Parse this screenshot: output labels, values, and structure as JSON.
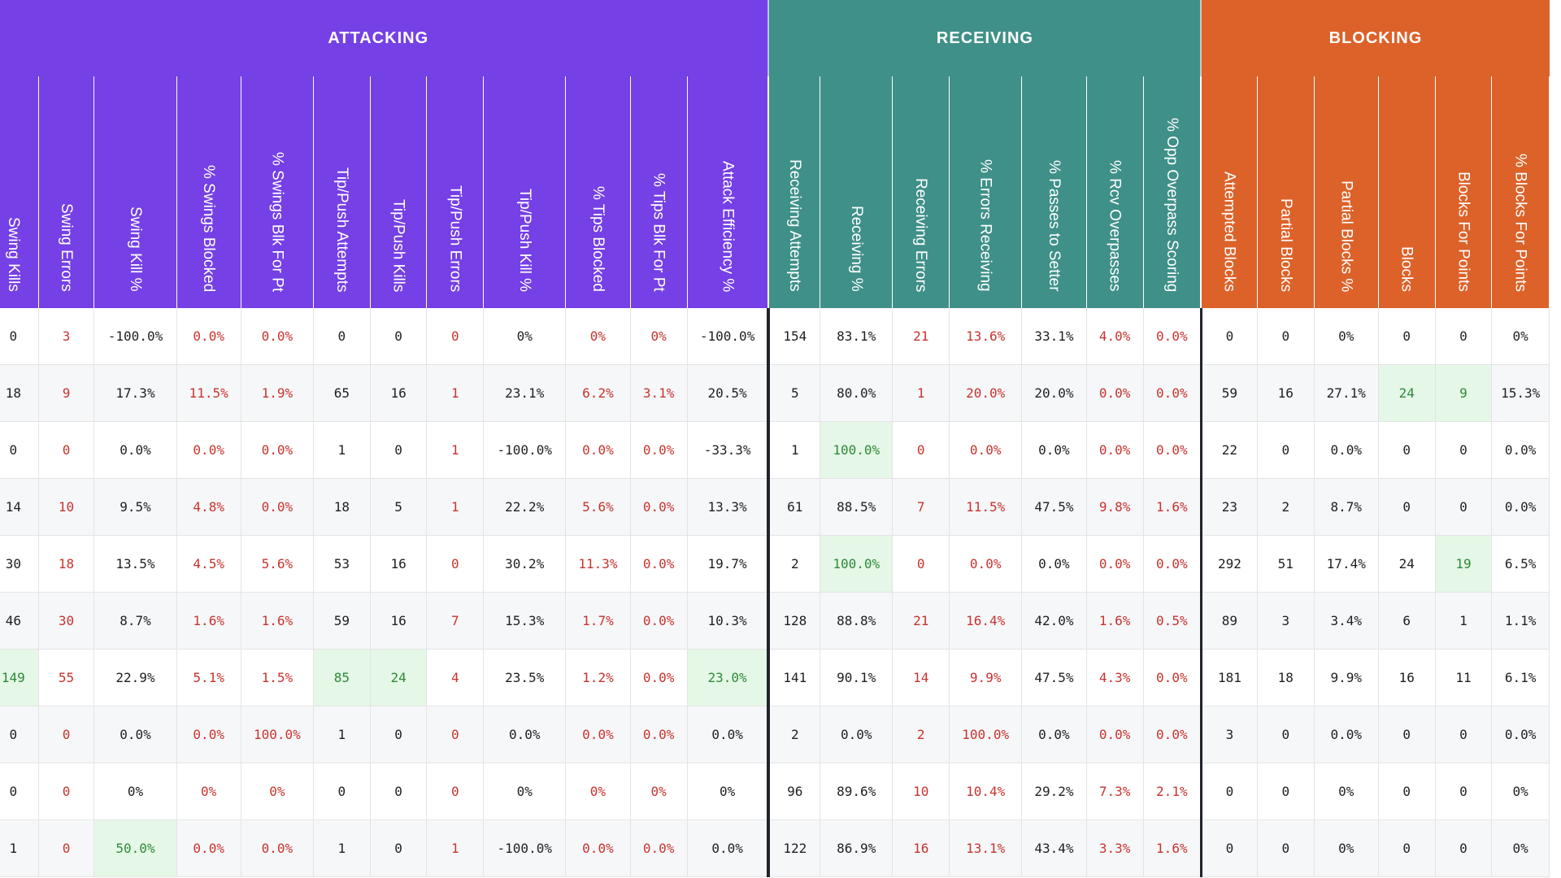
{
  "groups": [
    {
      "label": "ATTACKING",
      "color": "#7540e5",
      "span": 13
    },
    {
      "label": "RECEIVING",
      "color": "#3f9088",
      "span": 7
    },
    {
      "label": "BLOCKING",
      "color": "#dc6229",
      "span": 6
    }
  ],
  "columns": [
    "Swing Kills",
    "Swing Errors",
    "Swing Kill %",
    "% Swings Blocked",
    "% Swings Blk For Pt",
    "Tip/Push Attempts",
    "Tip/Push Kills",
    "Tip/Push Errors",
    "Tip/Push Kill %",
    "% Tips Blocked",
    "% Tips Blk For Pt",
    "Attack Efficiency %",
    "Receiving Attempts",
    "Receiving %",
    "Receiving Errors",
    "% Errors Receiving",
    "% Passes to Setter",
    "% Rcv Overpasses",
    "% Opp Overpass Scoring",
    "Attempted Blocks",
    "Partial Blocks",
    "Partial Blocks %",
    "Blocks",
    "Blocks For Points",
    "% Blocks For Points"
  ],
  "rows": [
    [
      "0",
      "3",
      "-100.0%",
      "0.0%",
      "0.0%",
      "0",
      "0",
      "0",
      "0%",
      "0%",
      "0%",
      "-100.0%",
      "154",
      "83.1%",
      "21",
      "13.6%",
      "33.1%",
      "4.0%",
      "0.0%",
      "0",
      "0",
      "0%",
      "0",
      "0",
      "0%"
    ],
    [
      "18",
      "9",
      "17.3%",
      "11.5%",
      "1.9%",
      "65",
      "16",
      "1",
      "23.1%",
      "6.2%",
      "3.1%",
      "20.5%",
      "5",
      "80.0%",
      "1",
      "20.0%",
      "20.0%",
      "0.0%",
      "0.0%",
      "59",
      "16",
      "27.1%",
      "24",
      "9",
      "15.3%"
    ],
    [
      "0",
      "0",
      "0.0%",
      "0.0%",
      "0.0%",
      "1",
      "0",
      "1",
      "-100.0%",
      "0.0%",
      "0.0%",
      "-33.3%",
      "1",
      "100.0%",
      "0",
      "0.0%",
      "0.0%",
      "0.0%",
      "0.0%",
      "22",
      "0",
      "0.0%",
      "0",
      "0",
      "0.0%"
    ],
    [
      "14",
      "10",
      "9.5%",
      "4.8%",
      "0.0%",
      "18",
      "5",
      "1",
      "22.2%",
      "5.6%",
      "0.0%",
      "13.3%",
      "61",
      "88.5%",
      "7",
      "11.5%",
      "47.5%",
      "9.8%",
      "1.6%",
      "23",
      "2",
      "8.7%",
      "0",
      "0",
      "0.0%"
    ],
    [
      "30",
      "18",
      "13.5%",
      "4.5%",
      "5.6%",
      "53",
      "16",
      "0",
      "30.2%",
      "11.3%",
      "0.0%",
      "19.7%",
      "2",
      "100.0%",
      "0",
      "0.0%",
      "0.0%",
      "0.0%",
      "0.0%",
      "292",
      "51",
      "17.4%",
      "24",
      "19",
      "6.5%"
    ],
    [
      "46",
      "30",
      "8.7%",
      "1.6%",
      "1.6%",
      "59",
      "16",
      "7",
      "15.3%",
      "1.7%",
      "0.0%",
      "10.3%",
      "128",
      "88.8%",
      "21",
      "16.4%",
      "42.0%",
      "1.6%",
      "0.5%",
      "89",
      "3",
      "3.4%",
      "6",
      "1",
      "1.1%"
    ],
    [
      "149",
      "55",
      "22.9%",
      "5.1%",
      "1.5%",
      "85",
      "24",
      "4",
      "23.5%",
      "1.2%",
      "0.0%",
      "23.0%",
      "141",
      "90.1%",
      "14",
      "9.9%",
      "47.5%",
      "4.3%",
      "0.0%",
      "181",
      "18",
      "9.9%",
      "16",
      "11",
      "6.1%"
    ],
    [
      "0",
      "0",
      "0.0%",
      "0.0%",
      "100.0%",
      "1",
      "0",
      "0",
      "0.0%",
      "0.0%",
      "0.0%",
      "0.0%",
      "2",
      "0.0%",
      "2",
      "100.0%",
      "0.0%",
      "0.0%",
      "0.0%",
      "3",
      "0",
      "0.0%",
      "0",
      "0",
      "0.0%"
    ],
    [
      "0",
      "0",
      "0%",
      "0%",
      "0%",
      "0",
      "0",
      "0",
      "0%",
      "0%",
      "0%",
      "0%",
      "96",
      "89.6%",
      "10",
      "10.4%",
      "29.2%",
      "7.3%",
      "2.1%",
      "0",
      "0",
      "0%",
      "0",
      "0",
      "0%"
    ],
    [
      "1",
      "0",
      "50.0%",
      "0.0%",
      "0.0%",
      "1",
      "0",
      "1",
      "-100.0%",
      "0.0%",
      "0.0%",
      "0.0%",
      "122",
      "86.9%",
      "16",
      "13.1%",
      "43.4%",
      "3.3%",
      "1.6%",
      "0",
      "0",
      "0%",
      "0",
      "0",
      "0%"
    ]
  ],
  "colors": {
    "attacking": "#7540e5",
    "receiving": "#3f9088",
    "blocking": "#dc6229",
    "negative_text": "#c8332e",
    "highlight_bg": "#e5f7e6",
    "highlight_text": "#2d8a3a"
  }
}
